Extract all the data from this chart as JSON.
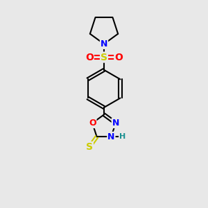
{
  "background_color": "#e8e8e8",
  "atom_colors": {
    "C": "#000000",
    "N": "#0000ff",
    "O": "#ff0000",
    "S": "#cccc00",
    "H": "#1a9090"
  },
  "bond_color": "#000000",
  "bond_width": 1.5,
  "fig_size": [
    3.0,
    3.0
  ],
  "dpi": 100
}
